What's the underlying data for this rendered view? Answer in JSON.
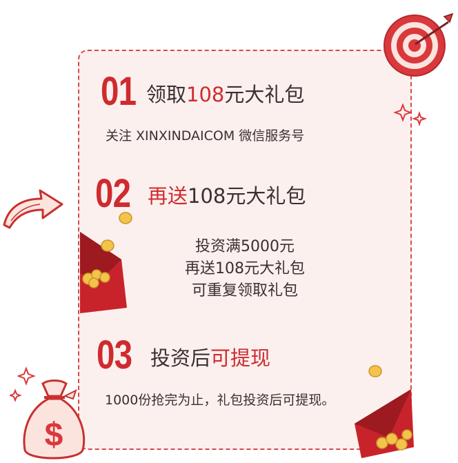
{
  "steps": [
    {
      "number": "01",
      "title_pre": "领取",
      "title_hl": "108",
      "title_post": "元大礼包",
      "description": "关注 XINXINDAICOM 微信服务号"
    },
    {
      "number": "02",
      "title_hl": "再送",
      "title_post": "108元大礼包",
      "lines": [
        "投资满5000元",
        "再送108元大礼包",
        "可重复领取礼包"
      ]
    },
    {
      "number": "03",
      "title_pre": "投资后",
      "title_hl": "可提现",
      "description": "1000份抢完为止，礼包投资后可提现。"
    }
  ],
  "colors": {
    "accent": "#cf2b2f",
    "text": "#3a3030",
    "card_bg": "#fbf0ee",
    "border": "#d8484c"
  },
  "icons": [
    "target-icon",
    "sparkle-icon",
    "arrow-icon",
    "money-bag-icon",
    "red-envelope-icon",
    "gold-coin-icon"
  ]
}
